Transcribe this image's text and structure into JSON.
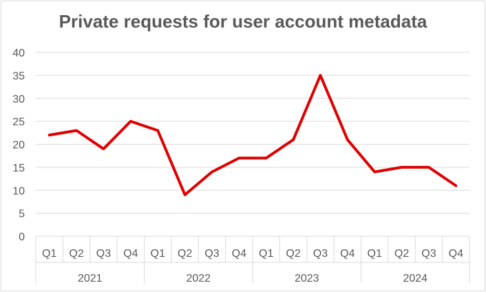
{
  "chart_data": {
    "type": "line",
    "title": "Private requests for user account metadata",
    "xlabel": "",
    "ylabel": "",
    "ylim": [
      0,
      40
    ],
    "yticks": [
      0,
      5,
      10,
      15,
      20,
      25,
      30,
      35,
      40
    ],
    "grid": true,
    "legend": "none",
    "line_color": "#e00000",
    "categories": [
      "Q1",
      "Q2",
      "Q3",
      "Q4",
      "Q1",
      "Q2",
      "Q3",
      "Q4",
      "Q1",
      "Q2",
      "Q3",
      "Q4",
      "Q1",
      "Q2",
      "Q3",
      "Q4"
    ],
    "groups": [
      {
        "label": "2021",
        "count": 4
      },
      {
        "label": "2022",
        "count": 4
      },
      {
        "label": "2023",
        "count": 4
      },
      {
        "label": "2024",
        "count": 4
      }
    ],
    "series": [
      {
        "values": [
          22,
          23,
          19,
          25,
          23,
          9,
          14,
          17,
          17,
          21,
          35,
          21,
          14,
          15,
          15,
          11
        ]
      }
    ]
  }
}
